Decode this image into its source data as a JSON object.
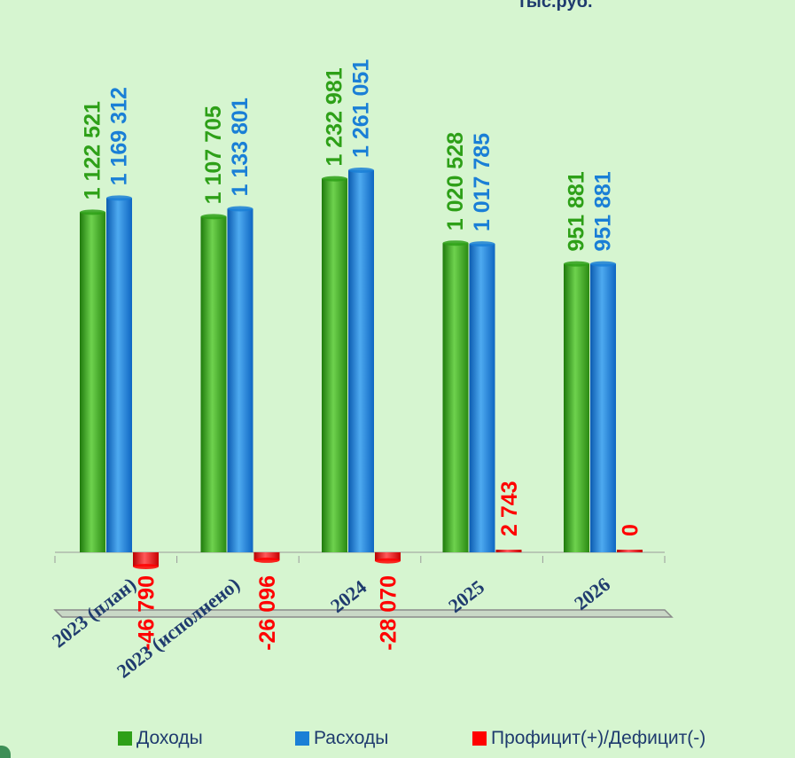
{
  "unit_label": "тыс.руб.",
  "colors": {
    "income": "#2ea018",
    "expense": "#1a7fd6",
    "balance": "#ff0000"
  },
  "chart_data": {
    "type": "bar",
    "categories": [
      "2023 (план)",
      "2023 (исполнено)",
      "2024",
      "2025",
      "2026"
    ],
    "series": [
      {
        "name": "Доходы",
        "values": [
          1122521,
          1107705,
          1232981,
          1020528,
          951881
        ],
        "labels": [
          "1 122 521",
          "1 107 705",
          "1 232 981",
          "1 020 528",
          "951 881"
        ]
      },
      {
        "name": "Расходы",
        "values": [
          1169312,
          1133801,
          1261051,
          1017785,
          951881
        ],
        "labels": [
          "1 169 312",
          "1 133 801",
          "1 261 051",
          "1 017 785",
          "951 881"
        ]
      },
      {
        "name": "Профицит(+)/Дефицит(-)",
        "values": [
          -46790,
          -26096,
          -28070,
          2743,
          0
        ],
        "labels": [
          "-46 790",
          "-26 096",
          "-28 070",
          "2 743",
          "0"
        ]
      }
    ],
    "ylim": [
      -50000,
      1300000
    ],
    "grid": false,
    "legend_position": "bottom"
  }
}
